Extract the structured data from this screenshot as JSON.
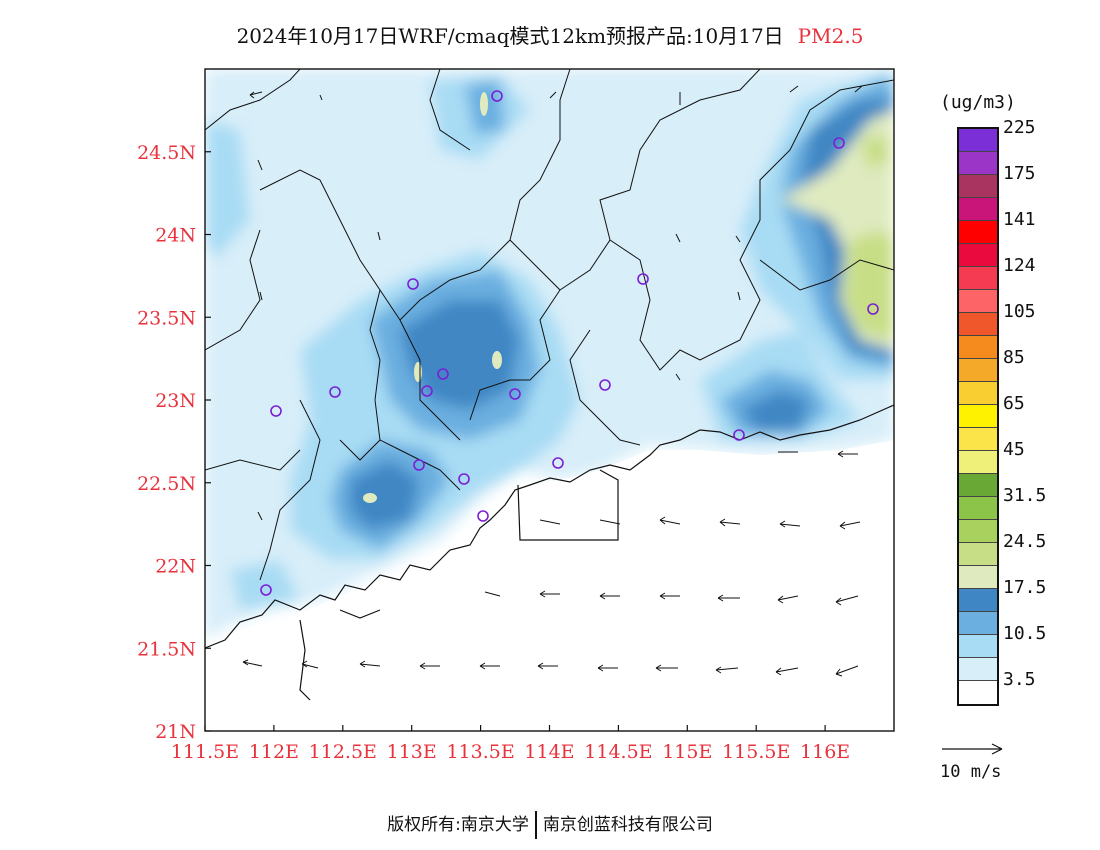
{
  "header": {
    "title": "2024年10月17日WRF/cmaq模式12km预报产品:10月17日",
    "pollutant": "PM2.5"
  },
  "axes": {
    "lon_ticks": [
      "111.5E",
      "112E",
      "112.5E",
      "113E",
      "113.5E",
      "114E",
      "114.5E",
      "115E",
      "115.5E",
      "116E"
    ],
    "lat_ticks": [
      "21N",
      "21.5N",
      "22N",
      "22.5N",
      "23N",
      "23.5N",
      "24N",
      "24.5N"
    ],
    "tick_color": "#e8323c"
  },
  "legend": {
    "unit": "(ug/m3)",
    "colors": [
      "#ffffff",
      "#d8eef9",
      "#a8dcf4",
      "#6aafe0",
      "#3f87c4",
      "#dfeabf",
      "#c8de86",
      "#a9d15e",
      "#8cc349",
      "#6aa836",
      "#eef07a",
      "#fbe34a",
      "#fff200",
      "#f8ce30",
      "#f4a929",
      "#f58a1f",
      "#f0582b",
      "#fd6468",
      "#f53b52",
      "#ea0a3d",
      "#ff0000",
      "#c9157a",
      "#a8345f",
      "#9b35c8",
      "#7b2fd6"
    ],
    "labels": [
      "3.5",
      "10.5",
      "17.5",
      "24.5",
      "31.5",
      "45",
      "65",
      "85",
      "105",
      "124",
      "141",
      "175",
      "225"
    ]
  },
  "wind_scale": {
    "label": "10 m/s"
  },
  "stations": "purple-circle-markers",
  "footer": {
    "left": "版权所有:南京大学",
    "right": "南京创蓝科技有限公司"
  }
}
